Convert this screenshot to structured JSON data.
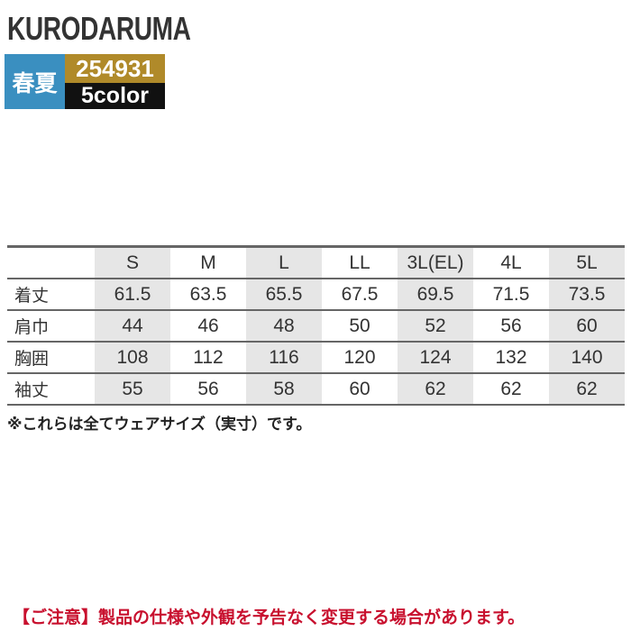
{
  "header": {
    "brand": "KURODARUMA",
    "season": "春夏",
    "product_code": "254931",
    "color_count": "5color",
    "colors": {
      "season_bg": "#3a8fc0",
      "code_bg": "#b08a2a",
      "color_bg": "#111111"
    }
  },
  "size_table": {
    "columns": [
      "S",
      "M",
      "L",
      "LL",
      "3L(EL)",
      "4L",
      "5L"
    ],
    "rows": [
      {
        "label": "着丈",
        "values": [
          "61.5",
          "63.5",
          "65.5",
          "67.5",
          "69.5",
          "71.5",
          "73.5"
        ]
      },
      {
        "label": "肩巾",
        "values": [
          "44",
          "46",
          "48",
          "50",
          "52",
          "56",
          "60"
        ]
      },
      {
        "label": "胸囲",
        "values": [
          "108",
          "112",
          "116",
          "120",
          "124",
          "132",
          "140"
        ]
      },
      {
        "label": "袖丈",
        "values": [
          "55",
          "56",
          "58",
          "60",
          "62",
          "62",
          "62"
        ]
      }
    ]
  },
  "note": "※これらは全てウェアサイズ（実寸）です。",
  "caution": "【ご注意】製品の仕様や外観を予告なく変更する場合があります。",
  "caution_color": "#c8102e"
}
